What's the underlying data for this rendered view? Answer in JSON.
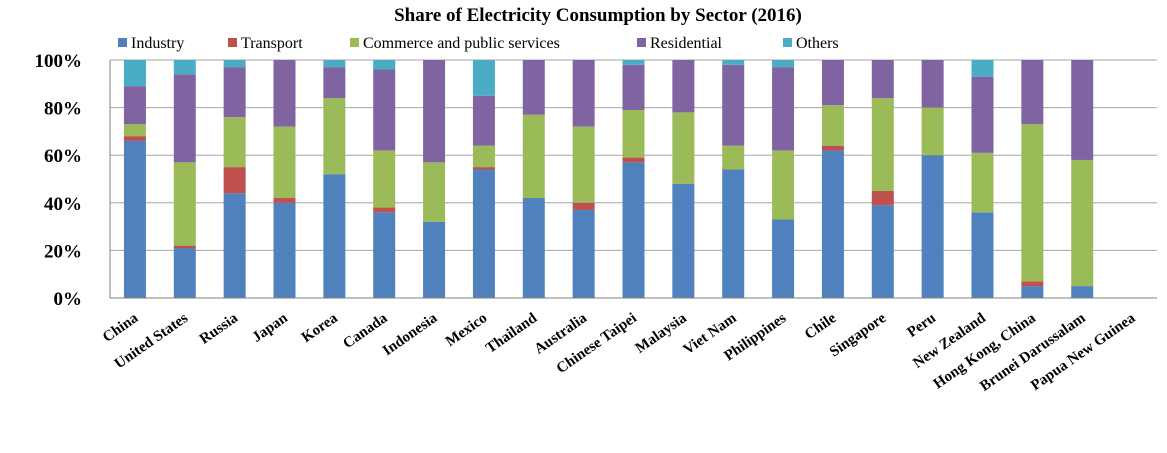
{
  "chart_data": {
    "type": "bar",
    "stacked": true,
    "title": "Share of  Electricity Consumption by Sector (2016)",
    "xlabel": "",
    "ylabel": "",
    "ylim": [
      0,
      100
    ],
    "yticks": [
      "0%",
      "20%",
      "40%",
      "60%",
      "80%",
      "100%"
    ],
    "grid": true,
    "legend_position": "top",
    "categories": [
      "China",
      "United States",
      "Russia",
      "Japan",
      "Korea",
      "Canada",
      "Indonesia",
      "Mexico",
      "Thailand",
      "Australia",
      "Chinese Taipei",
      "Malaysia",
      "Viet Nam",
      "Philippines",
      "Chile",
      "Singapore",
      "Peru",
      "New Zealand",
      "Hong Kong, China",
      "Brunei Darussalam",
      "Papua New Guinea"
    ],
    "series": [
      {
        "name": "Industry",
        "color": "#4f81bd",
        "values": [
          66,
          21,
          44,
          40,
          52,
          36,
          32,
          54,
          42,
          37,
          57,
          48,
          54,
          33,
          62,
          39,
          60,
          36,
          5,
          5,
          0
        ]
      },
      {
        "name": "Transport",
        "color": "#c0504d",
        "values": [
          2,
          1,
          11,
          2,
          0,
          2,
          0,
          1,
          0,
          3,
          2,
          0,
          0,
          0,
          2,
          6,
          0,
          0,
          2,
          0,
          0
        ]
      },
      {
        "name": "Commerce and public services",
        "color": "#9bbb59",
        "values": [
          5,
          35,
          21,
          30,
          32,
          24,
          25,
          9,
          35,
          32,
          20,
          30,
          10,
          29,
          17,
          39,
          20,
          25,
          66,
          53,
          0
        ]
      },
      {
        "name": "Residential",
        "color": "#8064a2",
        "values": [
          16,
          37,
          21,
          28,
          13,
          34,
          43,
          21,
          23,
          28,
          19,
          22,
          34,
          35,
          19,
          16,
          20,
          32,
          27,
          42,
          0
        ]
      },
      {
        "name": "Others",
        "color": "#4bacc6",
        "values": [
          11,
          6,
          3,
          0,
          3,
          4,
          0,
          15,
          0,
          0,
          2,
          0,
          2,
          3,
          0,
          0,
          0,
          7,
          0,
          0,
          0
        ]
      }
    ]
  }
}
